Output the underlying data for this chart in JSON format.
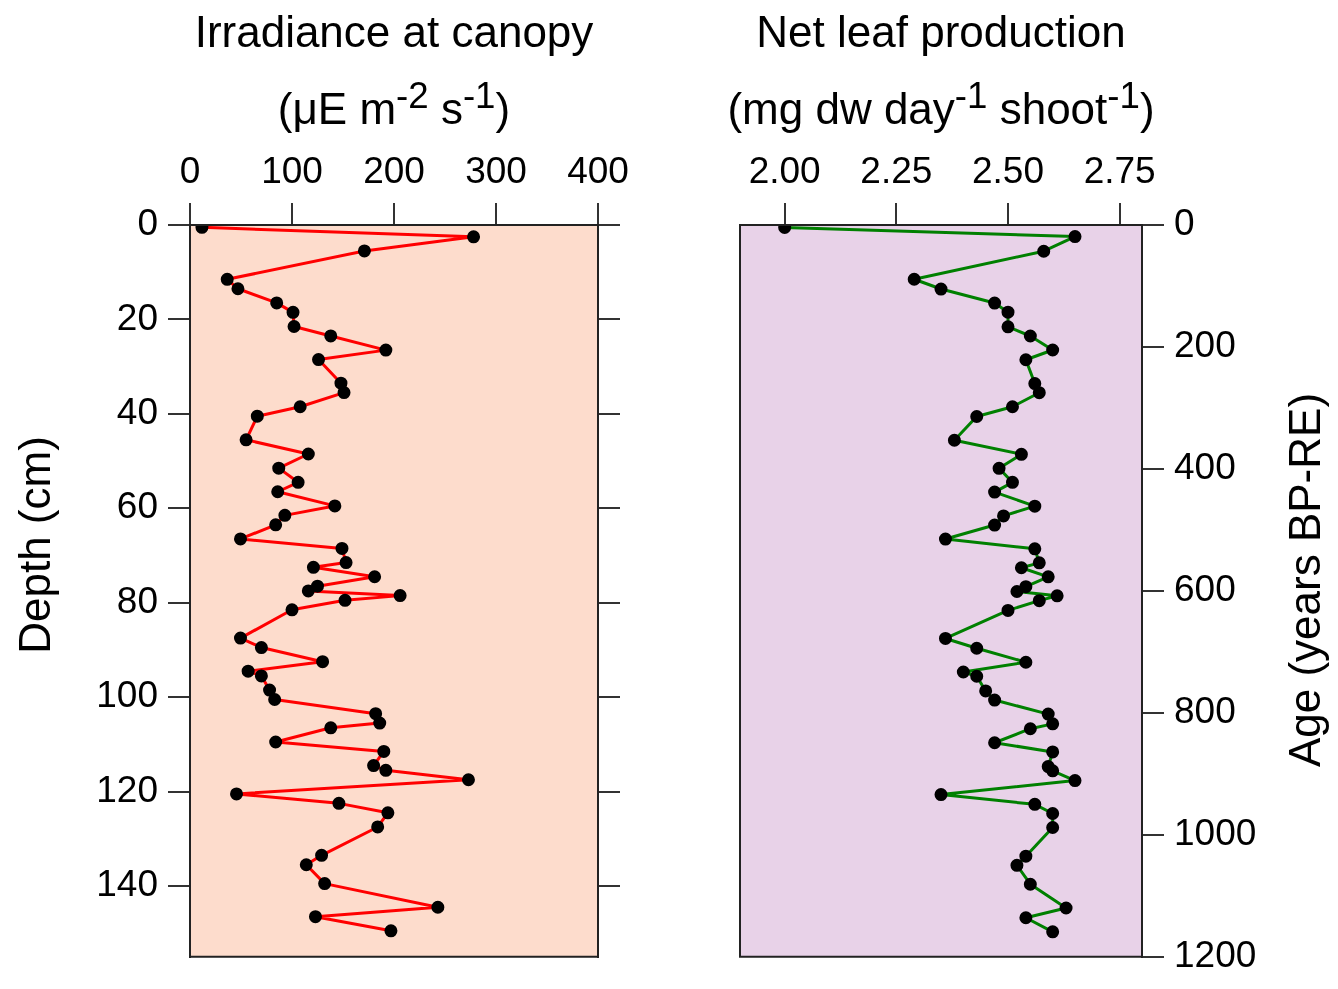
{
  "chart_data": [
    {
      "type": "line",
      "xlabel": "Irradiance at canopy (μE m$^{-2}$ s$^{-1}$)",
      "ylabel": "Depth (cm)",
      "xlim": [
        0,
        400
      ],
      "xticks": [
        0,
        100,
        200,
        300,
        400
      ],
      "ylim": [
        155,
        0
      ],
      "yticks": [
        0,
        20,
        40,
        60,
        80,
        100,
        120,
        140
      ],
      "grid": false,
      "legend": false,
      "marker": "circle",
      "line_style": "solid",
      "series": [
        {
          "color": "#ff0000",
          "x": [
            11.7,
            278,
            171,
            36.5,
            47,
            85,
            101,
            102,
            138,
            192,
            126,
            148,
            151,
            108,
            66,
            55,
            116,
            87,
            106,
            86,
            142,
            93,
            84,
            49.5,
            149,
            153,
            121,
            181,
            125,
            116,
            206,
            152,
            100,
            49.5,
            70,
            130,
            57,
            70,
            78,
            83,
            182,
            186,
            138,
            84,
            190,
            180,
            192,
            273,
            45.6,
            146,
            194,
            184,
            129,
            114,
            132,
            243,
            123,
            197
          ],
          "values": [
            0.5,
            2.5,
            5.5,
            11.5,
            13.5,
            16.5,
            18.5,
            21.5,
            23.5,
            26.5,
            28.5,
            33.5,
            35.5,
            38.5,
            40.5,
            45.5,
            48.5,
            51.5,
            54.5,
            56.5,
            59.5,
            61.5,
            63.5,
            66.5,
            68.5,
            71.5,
            72.5,
            74.5,
            76.5,
            77.5,
            78.5,
            79.5,
            81.5,
            87.5,
            89.5,
            92.5,
            94.5,
            95.5,
            98.5,
            100.5,
            103.5,
            105.5,
            106.5,
            109.5,
            111.5,
            114.5,
            115.5,
            117.5,
            120.5,
            122.5,
            124.5,
            127.5,
            133.5,
            135.5,
            139.5,
            144.5,
            146.5,
            149.5
          ]
        }
      ]
    },
    {
      "type": "line",
      "xlabel": "Net leaf production (mg dw day$^{-1}$ shoot$^{-1}$)",
      "y2label": "Age (years BP-RE)",
      "xlim": [
        1.9,
        2.8
      ],
      "xticks": [
        {
          "value": 2,
          "label": "2.00"
        },
        2.25,
        {
          "value": 2.5,
          "label": "2.50"
        },
        2.75
      ],
      "y2lim": [
        1200,
        0
      ],
      "y2ticks": [
        0,
        200,
        400,
        600,
        800,
        1000,
        1200
      ],
      "grid": false,
      "legend": false,
      "marker": "circle",
      "line_style": "solid",
      "series": [
        {
          "color": "#008000",
          "axis": "y2",
          "x": [
            2.0,
            2.65,
            2.58,
            2.29,
            2.35,
            2.47,
            2.5,
            2.5,
            2.55,
            2.6,
            2.54,
            2.56,
            2.57,
            2.51,
            2.43,
            2.38,
            2.53,
            2.48,
            2.51,
            2.47,
            2.56,
            2.49,
            2.47,
            2.36,
            2.56,
            2.57,
            2.53,
            2.59,
            2.54,
            2.52,
            2.61,
            2.57,
            2.5,
            2.36,
            2.43,
            2.54,
            2.4,
            2.43,
            2.45,
            2.47,
            2.59,
            2.6,
            2.55,
            2.47,
            2.6,
            2.59,
            2.6,
            2.65,
            2.35,
            2.56,
            2.6,
            2.6,
            2.54,
            2.52,
            2.55,
            2.63,
            2.54,
            2.6
          ],
          "values": [
            4,
            19,
            43,
            89,
            105,
            128,
            143,
            167,
            182,
            205,
            221,
            260,
            275,
            298,
            314,
            353,
            376,
            399,
            422,
            438,
            461,
            477,
            492,
            515,
            531,
            554,
            562,
            577,
            593,
            601,
            608,
            616,
            632,
            678,
            694,
            717,
            733,
            740,
            764,
            779,
            802,
            818,
            826,
            849,
            864,
            888,
            895,
            911,
            934,
            950,
            965,
            988,
            1035,
            1050,
            1081,
            1120,
            1136,
            1159
          ]
        }
      ]
    }
  ]
}
